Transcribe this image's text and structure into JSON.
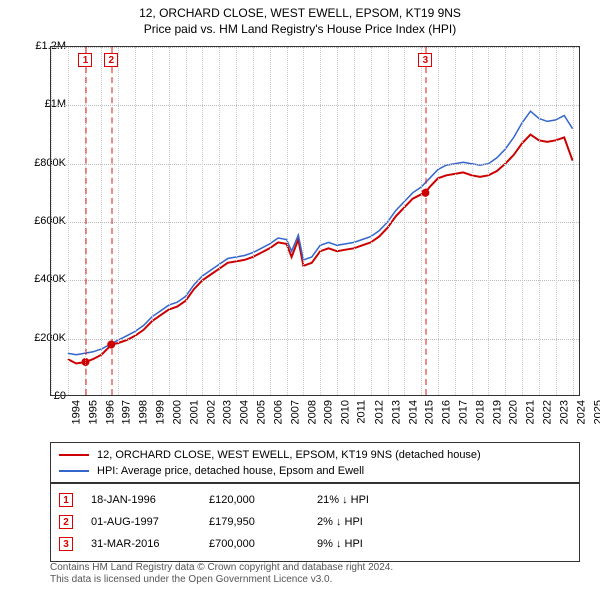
{
  "title": "12, ORCHARD CLOSE, WEST EWELL, EPSOM, KT19 9NS",
  "subtitle": "Price paid vs. HM Land Registry's House Price Index (HPI)",
  "chart": {
    "type": "line",
    "xlim": [
      1994,
      2025.5
    ],
    "ylim": [
      0,
      1200000
    ],
    "ytick_step": 200000,
    "yticks_labels": [
      "£0",
      "£200K",
      "£400K",
      "£600K",
      "£800K",
      "£1M",
      "£1.2M"
    ],
    "xticks": [
      1994,
      1995,
      1996,
      1997,
      1998,
      1999,
      2000,
      2001,
      2002,
      2003,
      2004,
      2005,
      2006,
      2007,
      2008,
      2009,
      2010,
      2011,
      2012,
      2013,
      2014,
      2015,
      2016,
      2017,
      2018,
      2019,
      2020,
      2021,
      2022,
      2023,
      2024,
      2025
    ],
    "grid_color": "#bbbbbb",
    "background_color": "#ffffff",
    "series": [
      {
        "name": "property",
        "label": "12, ORCHARD CLOSE, WEST EWELL, EPSOM, KT19 9NS (detached house)",
        "color": "#cc0000",
        "width": 2,
        "points": [
          [
            1995.0,
            130000
          ],
          [
            1995.5,
            115000
          ],
          [
            1996.05,
            120000
          ],
          [
            1996.5,
            130000
          ],
          [
            1997.0,
            145000
          ],
          [
            1997.6,
            179950
          ],
          [
            1998.0,
            185000
          ],
          [
            1998.5,
            195000
          ],
          [
            1999.0,
            210000
          ],
          [
            1999.5,
            230000
          ],
          [
            2000.0,
            260000
          ],
          [
            2000.5,
            280000
          ],
          [
            2001.0,
            300000
          ],
          [
            2001.5,
            310000
          ],
          [
            2002.0,
            330000
          ],
          [
            2002.5,
            370000
          ],
          [
            2003.0,
            400000
          ],
          [
            2003.5,
            420000
          ],
          [
            2004.0,
            440000
          ],
          [
            2004.5,
            460000
          ],
          [
            2005.0,
            465000
          ],
          [
            2005.5,
            470000
          ],
          [
            2006.0,
            480000
          ],
          [
            2006.5,
            495000
          ],
          [
            2007.0,
            510000
          ],
          [
            2007.5,
            530000
          ],
          [
            2008.0,
            525000
          ],
          [
            2008.3,
            480000
          ],
          [
            2008.7,
            540000
          ],
          [
            2009.0,
            450000
          ],
          [
            2009.5,
            460000
          ],
          [
            2010.0,
            500000
          ],
          [
            2010.5,
            510000
          ],
          [
            2011.0,
            500000
          ],
          [
            2011.5,
            505000
          ],
          [
            2012.0,
            510000
          ],
          [
            2012.5,
            520000
          ],
          [
            2013.0,
            530000
          ],
          [
            2013.5,
            550000
          ],
          [
            2014.0,
            580000
          ],
          [
            2014.5,
            620000
          ],
          [
            2015.0,
            650000
          ],
          [
            2015.5,
            680000
          ],
          [
            2016.0,
            695000
          ],
          [
            2016.25,
            700000
          ],
          [
            2016.5,
            720000
          ],
          [
            2017.0,
            750000
          ],
          [
            2017.5,
            760000
          ],
          [
            2018.0,
            765000
          ],
          [
            2018.5,
            770000
          ],
          [
            2019.0,
            760000
          ],
          [
            2019.5,
            755000
          ],
          [
            2020.0,
            760000
          ],
          [
            2020.5,
            775000
          ],
          [
            2021.0,
            800000
          ],
          [
            2021.5,
            830000
          ],
          [
            2022.0,
            870000
          ],
          [
            2022.5,
            900000
          ],
          [
            2023.0,
            880000
          ],
          [
            2023.5,
            875000
          ],
          [
            2024.0,
            880000
          ],
          [
            2024.5,
            890000
          ],
          [
            2025.0,
            810000
          ]
        ]
      },
      {
        "name": "hpi",
        "label": "HPI: Average price, detached house, Epsom and Ewell",
        "color": "#3366cc",
        "width": 1.5,
        "points": [
          [
            1995.0,
            150000
          ],
          [
            1995.5,
            145000
          ],
          [
            1996.0,
            150000
          ],
          [
            1996.5,
            155000
          ],
          [
            1997.0,
            165000
          ],
          [
            1997.5,
            180000
          ],
          [
            1998.0,
            195000
          ],
          [
            1998.5,
            210000
          ],
          [
            1999.0,
            225000
          ],
          [
            1999.5,
            245000
          ],
          [
            2000.0,
            275000
          ],
          [
            2000.5,
            295000
          ],
          [
            2001.0,
            315000
          ],
          [
            2001.5,
            325000
          ],
          [
            2002.0,
            345000
          ],
          [
            2002.5,
            385000
          ],
          [
            2003.0,
            415000
          ],
          [
            2003.5,
            435000
          ],
          [
            2004.0,
            455000
          ],
          [
            2004.5,
            475000
          ],
          [
            2005.0,
            480000
          ],
          [
            2005.5,
            485000
          ],
          [
            2006.0,
            495000
          ],
          [
            2006.5,
            510000
          ],
          [
            2007.0,
            525000
          ],
          [
            2007.5,
            545000
          ],
          [
            2008.0,
            540000
          ],
          [
            2008.3,
            500000
          ],
          [
            2008.7,
            555000
          ],
          [
            2009.0,
            470000
          ],
          [
            2009.5,
            480000
          ],
          [
            2010.0,
            520000
          ],
          [
            2010.5,
            530000
          ],
          [
            2011.0,
            520000
          ],
          [
            2011.5,
            525000
          ],
          [
            2012.0,
            530000
          ],
          [
            2012.5,
            540000
          ],
          [
            2013.0,
            550000
          ],
          [
            2013.5,
            570000
          ],
          [
            2014.0,
            600000
          ],
          [
            2014.5,
            640000
          ],
          [
            2015.0,
            670000
          ],
          [
            2015.5,
            700000
          ],
          [
            2016.0,
            720000
          ],
          [
            2016.5,
            750000
          ],
          [
            2017.0,
            780000
          ],
          [
            2017.5,
            795000
          ],
          [
            2018.0,
            800000
          ],
          [
            2018.5,
            805000
          ],
          [
            2019.0,
            800000
          ],
          [
            2019.5,
            795000
          ],
          [
            2020.0,
            800000
          ],
          [
            2020.5,
            820000
          ],
          [
            2021.0,
            850000
          ],
          [
            2021.5,
            890000
          ],
          [
            2022.0,
            940000
          ],
          [
            2022.5,
            980000
          ],
          [
            2023.0,
            955000
          ],
          [
            2023.5,
            945000
          ],
          [
            2024.0,
            950000
          ],
          [
            2024.5,
            965000
          ],
          [
            2025.0,
            920000
          ]
        ]
      }
    ],
    "events": [
      {
        "num": "1",
        "x": 1996.05,
        "date": "18-JAN-1996",
        "price": "£120,000",
        "delta": "21% ↓ HPI"
      },
      {
        "num": "2",
        "x": 1997.58,
        "date": "01-AUG-1997",
        "price": "£179,950",
        "delta": "2% ↓ HPI"
      },
      {
        "num": "3",
        "x": 2016.25,
        "date": "31-MAR-2016",
        "price": "£700,000",
        "delta": "9% ↓ HPI"
      }
    ],
    "event_markers": [
      {
        "x": 1996.05,
        "y": 120000
      },
      {
        "x": 1997.58,
        "y": 179950
      },
      {
        "x": 2016.25,
        "y": 700000
      }
    ],
    "marker_color": "#cc0000",
    "marker_radius": 4
  },
  "legend": {
    "series1_label": "12, ORCHARD CLOSE, WEST EWELL, EPSOM, KT19 9NS (detached house)",
    "series2_label": "HPI: Average price, detached house, Epsom and Ewell"
  },
  "footer": {
    "line1": "Contains HM Land Registry data © Crown copyright and database right 2024.",
    "line2": "This data is licensed under the Open Government Licence v3.0."
  }
}
